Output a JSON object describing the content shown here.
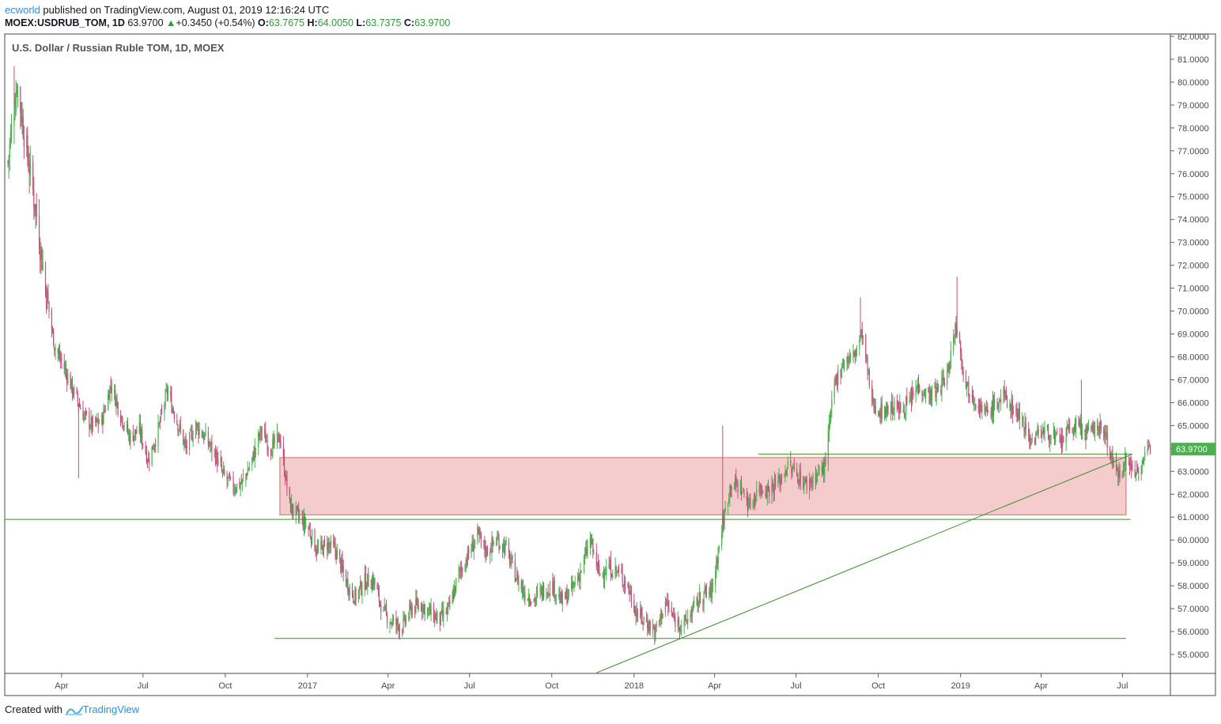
{
  "header": {
    "user": "ecworld",
    "published_text": "published on TradingView.com, August 01, 2019 12:16:24 UTC",
    "symbol": "MOEX:USDRUB_TOM, 1D",
    "last": "63.9700",
    "change_arrow": "▲",
    "change": "+0.3450 (+0.54%)",
    "o_label": "O:",
    "o_value": "63.7675",
    "h_label": "H:",
    "h_value": "64.0050",
    "l_label": "L:",
    "l_value": "63.7375",
    "c_label": "C:",
    "c_value": "63.9700"
  },
  "title": "U.S. Dollar / Russian Ruble TOM, 1D, MOEX",
  "footer": {
    "created_with": "Created with",
    "brand": "TradingView"
  },
  "colors": {
    "up": "#26a69a",
    "down": "#ef5350",
    "candle": "#c0507a",
    "candle_up": "#4caf50",
    "trendline": "#3f8a2e",
    "zone_fill": "#f4c6c6",
    "zone_stroke": "#d46a6a",
    "axis": "#5d606b",
    "price_label_bg": "#4caf50"
  },
  "chart_data": {
    "type": "candlestick",
    "y_axis": {
      "min": 54.2,
      "max": 82.0,
      "ticks": [
        "82.0000",
        "81.0000",
        "80.0000",
        "79.0000",
        "78.0000",
        "77.0000",
        "76.0000",
        "75.0000",
        "74.0000",
        "73.0000",
        "72.0000",
        "71.0000",
        "70.0000",
        "69.0000",
        "68.0000",
        "67.0000",
        "66.0000",
        "65.0000",
        "64.0000",
        "63.0000",
        "62.0000",
        "61.0000",
        "60.0000",
        "59.0000",
        "58.0000",
        "57.0000",
        "56.0000",
        "55.0000"
      ],
      "tick_values": [
        82,
        81,
        80,
        79,
        78,
        77,
        76,
        75,
        74,
        73,
        72,
        71,
        70,
        69,
        68,
        67,
        66,
        65,
        64,
        63,
        62,
        61,
        60,
        59,
        58,
        57,
        56,
        55
      ]
    },
    "x_axis": {
      "start": "2016-02-01",
      "end": "2019-08-20",
      "ticks": [
        {
          "label": "Apr",
          "date": "2016-04-01"
        },
        {
          "label": "Jul",
          "date": "2016-07-01"
        },
        {
          "label": "Oct",
          "date": "2016-10-01"
        },
        {
          "label": "2017",
          "date": "2017-01-01"
        },
        {
          "label": "Apr",
          "date": "2017-04-01"
        },
        {
          "label": "Jul",
          "date": "2017-07-01"
        },
        {
          "label": "Oct",
          "date": "2017-10-01"
        },
        {
          "label": "2018",
          "date": "2018-01-01"
        },
        {
          "label": "Apr",
          "date": "2018-04-01"
        },
        {
          "label": "Jul",
          "date": "2018-07-01"
        },
        {
          "label": "Oct",
          "date": "2018-10-01"
        },
        {
          "label": "2019",
          "date": "2019-01-01"
        },
        {
          "label": "Apr",
          "date": "2019-04-01"
        },
        {
          "label": "Jul",
          "date": "2019-07-01"
        }
      ]
    },
    "last_price": "63.9700",
    "series_keypoints": [
      [
        "2016-02-01",
        76.5
      ],
      [
        "2016-02-11",
        80.0
      ],
      [
        "2016-02-22",
        77.0
      ],
      [
        "2016-03-03",
        74.5
      ],
      [
        "2016-03-14",
        71.0
      ],
      [
        "2016-03-24",
        68.5
      ],
      [
        "2016-04-04",
        67.5
      ],
      [
        "2016-04-14",
        66.5
      ],
      [
        "2016-04-25",
        65.5
      ],
      [
        "2016-05-05",
        65.0
      ],
      [
        "2016-05-16",
        65.2
      ],
      [
        "2016-05-26",
        66.8
      ],
      [
        "2016-06-06",
        65.5
      ],
      [
        "2016-06-16",
        64.5
      ],
      [
        "2016-06-27",
        64.8
      ],
      [
        "2016-07-07",
        63.5
      ],
      [
        "2016-07-18",
        64.8
      ],
      [
        "2016-07-28",
        66.5
      ],
      [
        "2016-08-08",
        65.2
      ],
      [
        "2016-08-18",
        64.0
      ],
      [
        "2016-08-29",
        65.0
      ],
      [
        "2016-09-08",
        64.5
      ],
      [
        "2016-09-19",
        63.8
      ],
      [
        "2016-09-29",
        62.8
      ],
      [
        "2016-10-10",
        62.3
      ],
      [
        "2016-10-20",
        62.5
      ],
      [
        "2016-10-31",
        63.5
      ],
      [
        "2016-11-10",
        64.8
      ],
      [
        "2016-11-21",
        64.0
      ],
      [
        "2016-12-01",
        64.5
      ],
      [
        "2016-12-12",
        61.5
      ],
      [
        "2016-12-22",
        61.0
      ],
      [
        "2017-01-02",
        60.5
      ],
      [
        "2017-01-12",
        59.5
      ],
      [
        "2017-01-23",
        59.8
      ],
      [
        "2017-02-02",
        59.5
      ],
      [
        "2017-02-13",
        58.2
      ],
      [
        "2017-02-23",
        57.5
      ],
      [
        "2017-03-06",
        58.2
      ],
      [
        "2017-03-16",
        58.2
      ],
      [
        "2017-03-27",
        56.8
      ],
      [
        "2017-04-06",
        56.4
      ],
      [
        "2017-04-17",
        56.2
      ],
      [
        "2017-04-27",
        57.0
      ],
      [
        "2017-05-08",
        57.2
      ],
      [
        "2017-05-18",
        56.8
      ],
      [
        "2017-05-29",
        56.5
      ],
      [
        "2017-06-08",
        57.0
      ],
      [
        "2017-06-19",
        58.5
      ],
      [
        "2017-06-29",
        59.3
      ],
      [
        "2017-07-10",
        60.2
      ],
      [
        "2017-07-20",
        59.5
      ],
      [
        "2017-07-31",
        60.0
      ],
      [
        "2017-08-10",
        59.7
      ],
      [
        "2017-08-21",
        58.5
      ],
      [
        "2017-08-31",
        57.7
      ],
      [
        "2017-09-11",
        57.4
      ],
      [
        "2017-09-21",
        57.8
      ],
      [
        "2017-10-02",
        58.0
      ],
      [
        "2017-10-12",
        57.3
      ],
      [
        "2017-10-23",
        57.8
      ],
      [
        "2017-11-02",
        58.6
      ],
      [
        "2017-11-13",
        60.0
      ],
      [
        "2017-11-23",
        58.5
      ],
      [
        "2017-12-04",
        58.8
      ],
      [
        "2017-12-14",
        58.6
      ],
      [
        "2017-12-25",
        58.0
      ],
      [
        "2018-01-04",
        56.8
      ],
      [
        "2018-01-15",
        56.4
      ],
      [
        "2018-01-25",
        56.0
      ],
      [
        "2018-02-05",
        57.3
      ],
      [
        "2018-02-15",
        56.5
      ],
      [
        "2018-02-26",
        56.3
      ],
      [
        "2018-03-08",
        57.0
      ],
      [
        "2018-03-19",
        57.6
      ],
      [
        "2018-03-29",
        57.8
      ],
      [
        "2018-04-09",
        60.5
      ],
      [
        "2018-04-19",
        62.5
      ],
      [
        "2018-04-30",
        62.3
      ],
      [
        "2018-05-10",
        61.5
      ],
      [
        "2018-05-21",
        62.3
      ],
      [
        "2018-05-31",
        62.2
      ],
      [
        "2018-06-11",
        62.5
      ],
      [
        "2018-06-21",
        63.2
      ],
      [
        "2018-07-02",
        62.9
      ],
      [
        "2018-07-12",
        62.4
      ],
      [
        "2018-07-23",
        62.8
      ],
      [
        "2018-08-02",
        63.2
      ],
      [
        "2018-08-13",
        66.8
      ],
      [
        "2018-08-23",
        67.8
      ],
      [
        "2018-09-03",
        68.0
      ],
      [
        "2018-09-13",
        69.0
      ],
      [
        "2018-09-24",
        66.0
      ],
      [
        "2018-10-04",
        65.6
      ],
      [
        "2018-10-15",
        65.8
      ],
      [
        "2018-10-25",
        65.7
      ],
      [
        "2018-11-05",
        66.0
      ],
      [
        "2018-11-15",
        66.8
      ],
      [
        "2018-11-26",
        66.3
      ],
      [
        "2018-12-06",
        66.5
      ],
      [
        "2018-12-17",
        67.2
      ],
      [
        "2018-12-27",
        69.5
      ],
      [
        "2019-01-07",
        66.8
      ],
      [
        "2019-01-17",
        66.2
      ],
      [
        "2019-01-28",
        65.5
      ],
      [
        "2019-02-07",
        65.8
      ],
      [
        "2019-02-18",
        66.3
      ],
      [
        "2019-02-28",
        65.8
      ],
      [
        "2019-03-11",
        65.3
      ],
      [
        "2019-03-21",
        64.3
      ],
      [
        "2019-04-01",
        64.8
      ],
      [
        "2019-04-11",
        64.6
      ],
      [
        "2019-04-22",
        64.2
      ],
      [
        "2019-05-02",
        64.8
      ],
      [
        "2019-05-13",
        65.0
      ],
      [
        "2019-05-23",
        64.6
      ],
      [
        "2019-06-03",
        65.0
      ],
      [
        "2019-06-13",
        64.5
      ],
      [
        "2019-06-24",
        62.8
      ],
      [
        "2019-07-04",
        63.5
      ],
      [
        "2019-07-15",
        63.0
      ],
      [
        "2019-07-25",
        63.5
      ],
      [
        "2019-08-01",
        63.97
      ]
    ],
    "spikes": [
      {
        "date": "2016-02-08",
        "high": 80.7
      },
      {
        "date": "2016-04-20",
        "low": 62.7
      },
      {
        "date": "2018-04-10",
        "high": 65.0
      },
      {
        "date": "2018-09-11",
        "high": 70.6
      },
      {
        "date": "2018-12-28",
        "high": 71.5
      },
      {
        "date": "2019-05-16",
        "high": 67.0
      }
    ],
    "drawings": {
      "zone": {
        "from": "2016-12-01",
        "to": "2019-07-05",
        "top": 63.6,
        "bottom": 61.1
      },
      "hlines": [
        {
          "from": "2016-01-28",
          "to": "2019-07-10",
          "value": 60.9
        },
        {
          "from": "2018-05-20",
          "to": "2019-07-12",
          "value": 63.75
        },
        {
          "from": "2016-11-25",
          "to": "2019-07-05",
          "value": 55.7
        }
      ],
      "trendline": {
        "from": [
          "2017-11-20",
          54.2
        ],
        "to": [
          "2019-07-12",
          63.75
        ]
      }
    }
  }
}
